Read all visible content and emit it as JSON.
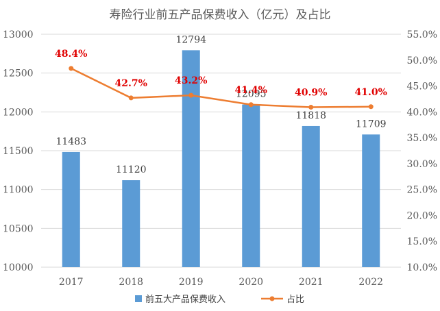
{
  "chart_data": {
    "type": "bar",
    "title": "寿险行业前五产品保费收入（亿元）及占比",
    "categories": [
      "2017",
      "2018",
      "2019",
      "2020",
      "2021",
      "2022"
    ],
    "series": [
      {
        "name": "前五大产品保费收入",
        "type": "bar",
        "axis": "left",
        "values": [
          11483,
          11120,
          12794,
          12095,
          11818,
          11709
        ],
        "labels": [
          "11483",
          "11120",
          "12794",
          "12095",
          "11818",
          "11709"
        ]
      },
      {
        "name": "占比",
        "type": "line",
        "axis": "right",
        "values": [
          48.4,
          42.7,
          43.2,
          41.4,
          40.9,
          41.0
        ],
        "labels": [
          "48.4%",
          "42.7%",
          "43.2%",
          "41.4%",
          "40.9%",
          "41.0%"
        ]
      }
    ],
    "y_left": {
      "ylim": [
        10000,
        13000
      ],
      "ticks": [
        "10000",
        "10500",
        "11000",
        "11500",
        "12000",
        "12500",
        "13000"
      ]
    },
    "y_right": {
      "ylim": [
        10,
        55
      ],
      "ticks": [
        "10.0%",
        "15.0%",
        "20.0%",
        "25.0%",
        "30.0%",
        "35.0%",
        "40.0%",
        "45.0%",
        "50.0%",
        "55.0%"
      ]
    },
    "grid": true,
    "legend_position": "bottom",
    "colors": {
      "bar": "#5B9BD5",
      "line": "#ED7D31",
      "line_label": "#E00000",
      "grid": "#D9D9D9",
      "axis_text": "#595959",
      "title": "#595959"
    }
  }
}
